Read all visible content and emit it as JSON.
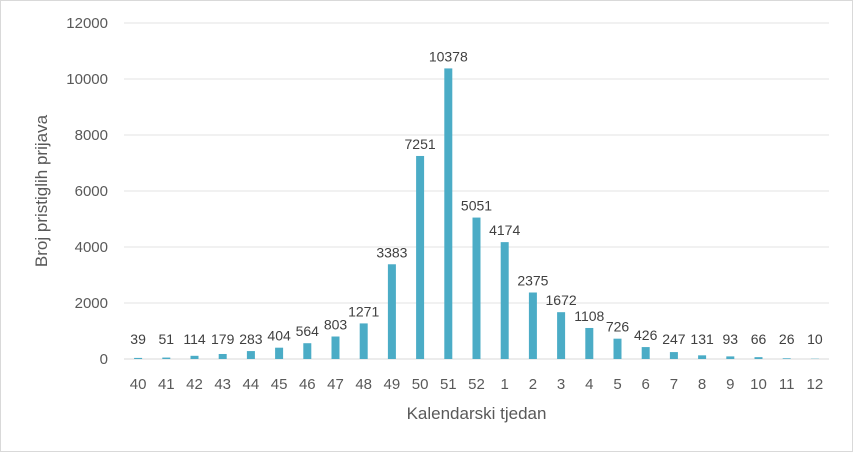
{
  "chart_data": {
    "type": "bar",
    "title": "",
    "xlabel": "Kalendarski tjedan",
    "ylabel": "Broj pristiglih prijava",
    "ylim": [
      0,
      12000
    ],
    "yticks": [
      "0",
      "2000",
      "4000",
      "6000",
      "8000",
      "10000",
      "12000"
    ],
    "grid": true,
    "legend": "none",
    "bar_color": "#4bacc6",
    "categories": [
      "40",
      "41",
      "42",
      "43",
      "44",
      "45",
      "46",
      "47",
      "48",
      "49",
      "50",
      "51",
      "52",
      "1",
      "2",
      "3",
      "4",
      "5",
      "6",
      "7",
      "8",
      "9",
      "10",
      "11",
      "12"
    ],
    "values": [
      39,
      51,
      114,
      179,
      283,
      404,
      564,
      803,
      1271,
      3383,
      7251,
      10378,
      5051,
      4174,
      2375,
      1672,
      1108,
      726,
      426,
      247,
      131,
      93,
      66,
      26,
      10
    ]
  }
}
